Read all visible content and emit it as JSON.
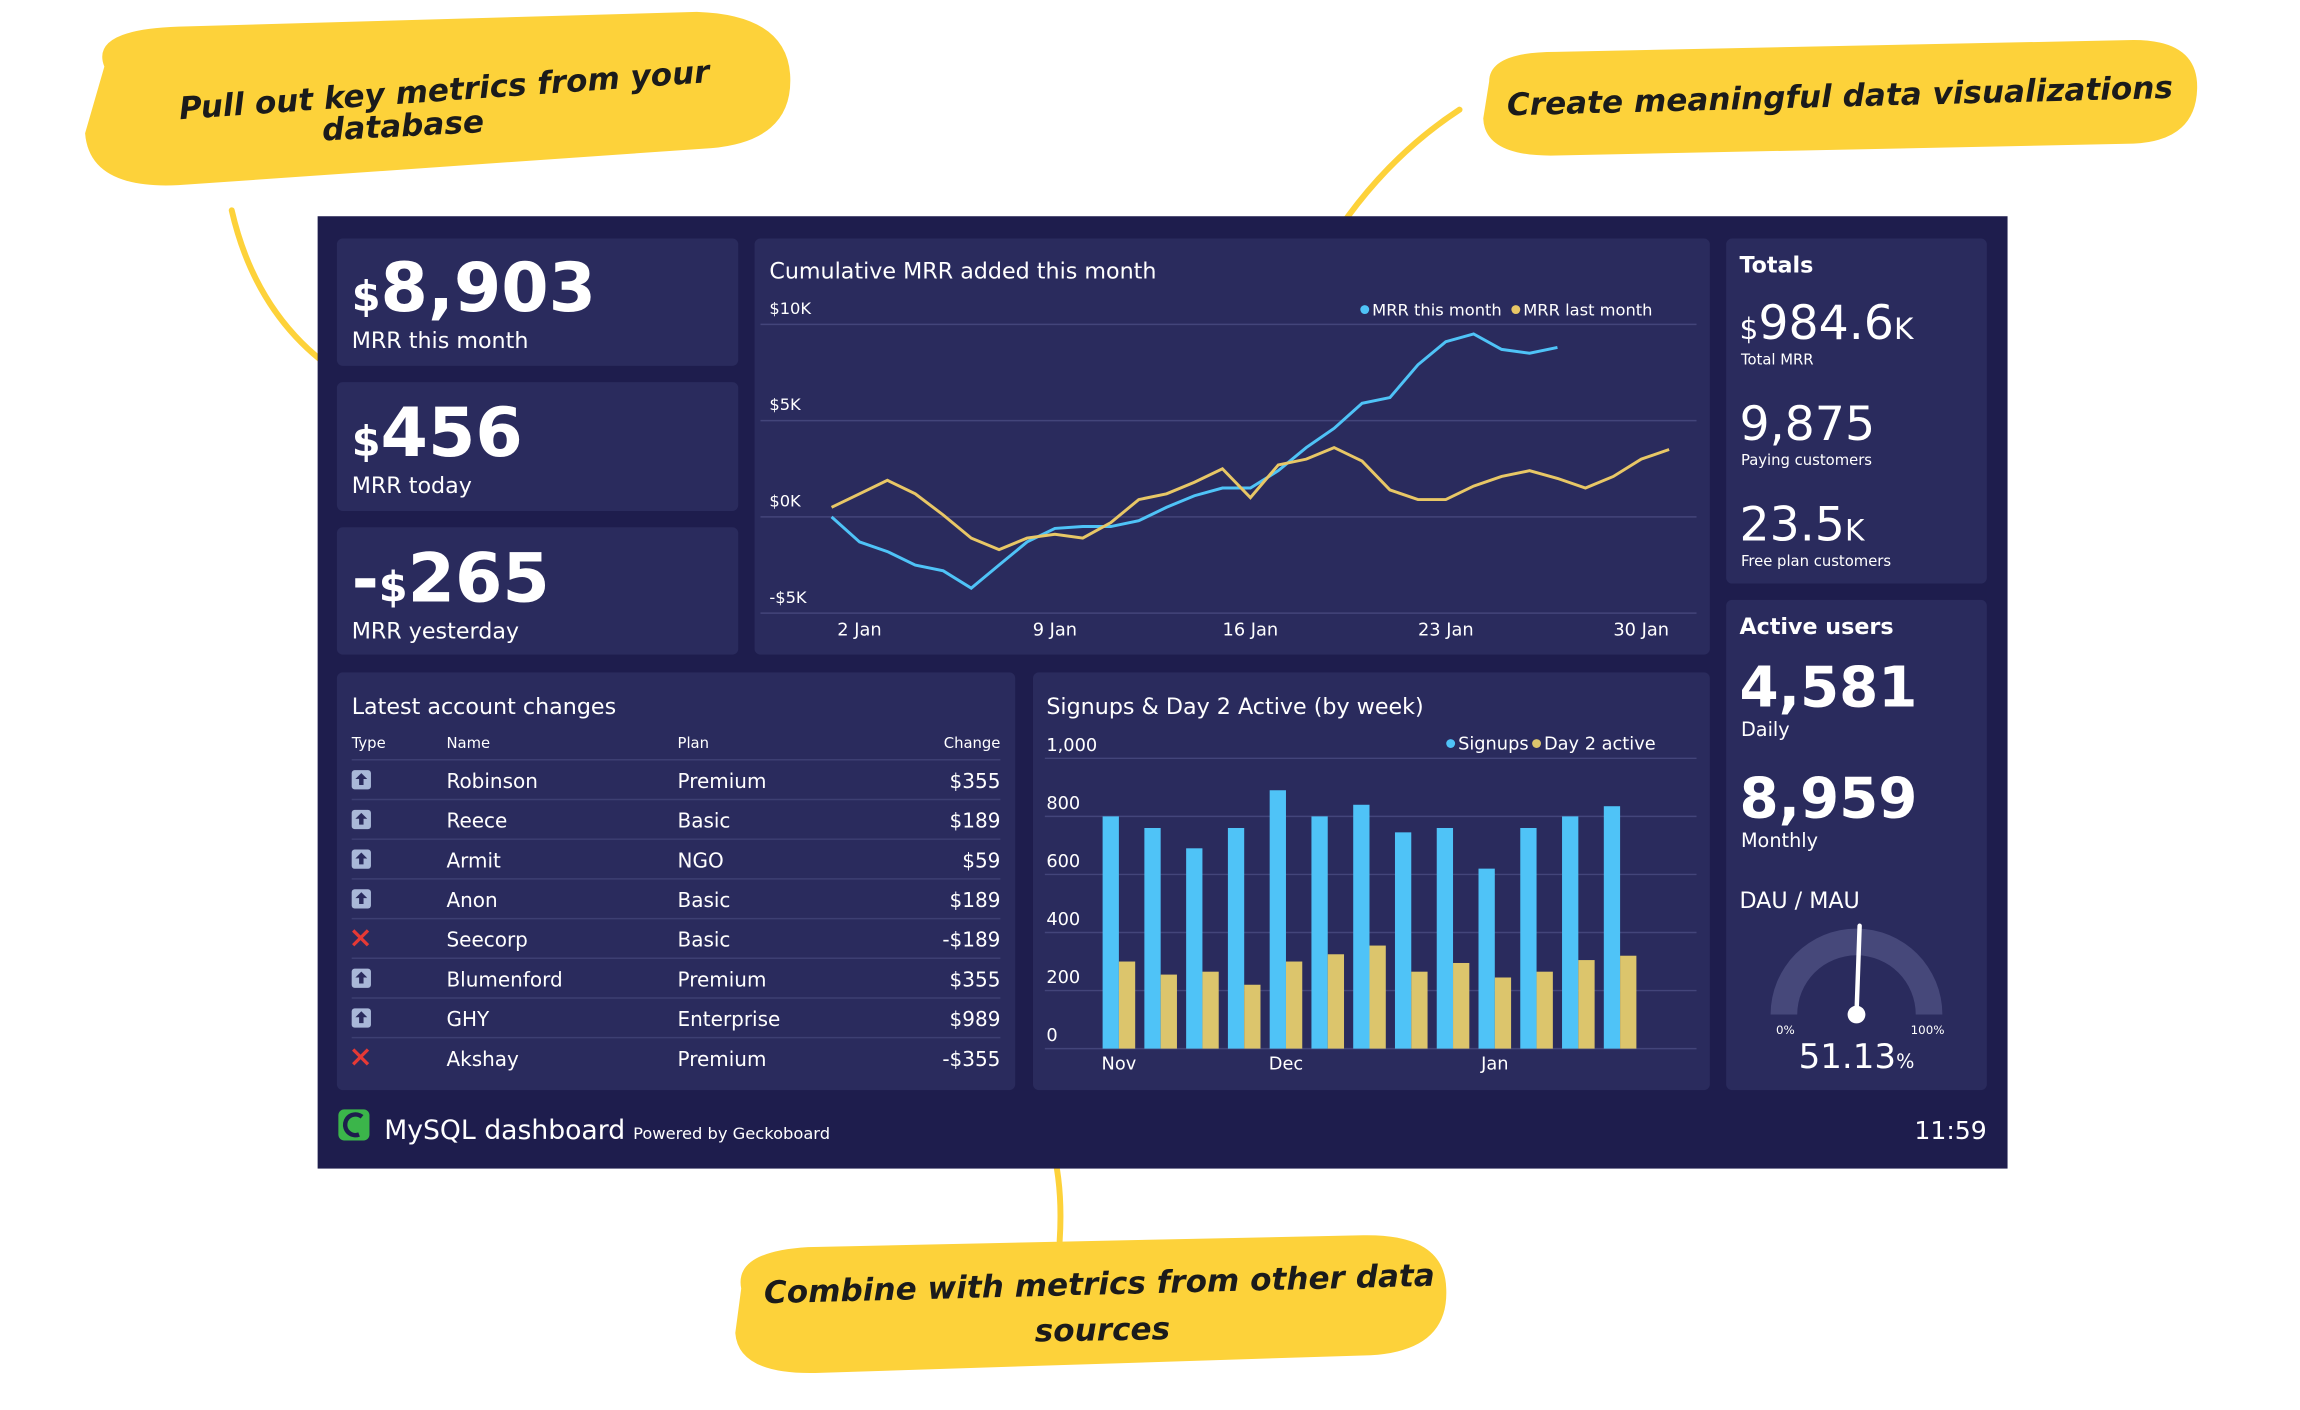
{
  "callouts": [
    {
      "lines": [
        "Pull out key metrics from your",
        "database"
      ]
    },
    {
      "lines": [
        "Create meaningful data visualizations"
      ]
    },
    {
      "lines": [
        "Combine with metrics from other data",
        "sources"
      ]
    }
  ],
  "kpis": [
    {
      "currency": "$",
      "value": "8,903",
      "label": "MRR this month"
    },
    {
      "currency": "$",
      "value": "456",
      "label": "MRR today"
    },
    {
      "sign": "-",
      "currency": "$",
      "value": "265",
      "label": "MRR yesterday"
    }
  ],
  "line_chart": {
    "type": "line",
    "title": "Cumulative MRR added this month",
    "categories": [
      null,
      "2 Jan",
      null,
      null,
      null,
      null,
      null,
      null,
      "9 Jan",
      null,
      null,
      null,
      null,
      null,
      null,
      "16 Jan",
      null,
      null,
      null,
      null,
      null,
      null,
      "23 Jan",
      null,
      null,
      null,
      null,
      null,
      null,
      "30 Jan",
      null
    ],
    "series": [
      {
        "name": "MRR this month",
        "color": "#4fc3f7",
        "values": [
          0,
          -1.3,
          -1.8,
          -2.5,
          -2.8,
          -3.7,
          -2.5,
          -1.3,
          -0.6,
          -0.5,
          -0.5,
          -0.2,
          0.5,
          1.1,
          1.5,
          1.5,
          2.4,
          3.6,
          4.6,
          5.9,
          6.2,
          7.9,
          9.1,
          9.5,
          8.7,
          8.5,
          8.8,
          null,
          null,
          null,
          null
        ]
      },
      {
        "name": "MRR last month",
        "color": "#e8c766",
        "values": [
          0.5,
          1.2,
          1.9,
          1.2,
          0.1,
          -1.1,
          -1.7,
          -1.1,
          -0.9,
          -1.1,
          -0.3,
          0.9,
          1.2,
          1.8,
          2.5,
          1.0,
          2.7,
          3.0,
          3.6,
          2.9,
          1.4,
          0.9,
          0.9,
          1.6,
          2.1,
          2.4,
          2.0,
          1.5,
          2.1,
          3.0,
          3.5
        ]
      }
    ],
    "ylim": [
      -5,
      10
    ],
    "yticks": [
      {
        "value": -5,
        "label": "-$5K"
      },
      {
        "value": 0,
        "label": "$0K"
      },
      {
        "value": 5,
        "label": "$5K"
      },
      {
        "value": 10,
        "label": "$10K"
      }
    ],
    "grid": true
  },
  "totals": {
    "title": "Totals",
    "items": [
      {
        "currency": "$",
        "value": "984.6",
        "suffix": "K",
        "label": "Total MRR"
      },
      {
        "value": "9,875",
        "label": "Paying customers"
      },
      {
        "value": "23.5",
        "suffix": "K",
        "label": "Free plan customers"
      }
    ]
  },
  "table": {
    "title": "Latest account changes",
    "columns": [
      "Type",
      "Name",
      "Plan",
      "Change"
    ],
    "rows": [
      [
        "Robinson",
        "Premium",
        "$355"
      ],
      [
        "Reece",
        "Basic",
        "$189"
      ],
      [
        "Armit",
        "NGO",
        "$59"
      ],
      [
        "Anon",
        "Basic",
        "$189"
      ],
      [
        "Seecorp",
        "Basic",
        "-$189"
      ],
      [
        "Blumenford",
        "Premium",
        "$355"
      ],
      [
        "GHY",
        "Enterprise",
        "$989"
      ],
      [
        "Akshay",
        "Premium",
        "-$355"
      ]
    ]
  },
  "bar_chart": {
    "type": "bar",
    "title": "Signups & Day 2 Active (by week)",
    "categories": [
      "Nov",
      null,
      null,
      null,
      "Dec",
      null,
      null,
      null,
      null,
      "Jan",
      null,
      null,
      null
    ],
    "series": [
      {
        "name": "Signups",
        "color": "#4fc3f7",
        "values": [
          800,
          760,
          690,
          760,
          890,
          800,
          840,
          745,
          760,
          620,
          760,
          800,
          835
        ]
      },
      {
        "name": "Day 2 active",
        "color": "#dcc56c",
        "values": [
          300,
          255,
          265,
          220,
          300,
          325,
          355,
          265,
          295,
          245,
          265,
          305,
          320
        ]
      }
    ],
    "ylim": [
      0,
      1000
    ],
    "yticks": [
      0,
      200,
      400,
      600,
      800,
      {
        "value": 1000,
        "label": "1,000"
      }
    ],
    "grid": true
  },
  "active_users": {
    "title": "Active users",
    "items": [
      {
        "value": "4,581",
        "label": "Daily"
      },
      {
        "value": "8,959",
        "label": "Monthly"
      }
    ],
    "gauge": {
      "title": "DAU / MAU",
      "value": 51.13,
      "unit": "%",
      "range": [
        {
          "value": 0,
          "label": "0%"
        },
        {
          "value": 100,
          "label": "100%"
        }
      ]
    }
  },
  "footer": {
    "title": "MySQL dashboard",
    "powered": "Powered by Geckoboard",
    "time": "11:59"
  }
}
